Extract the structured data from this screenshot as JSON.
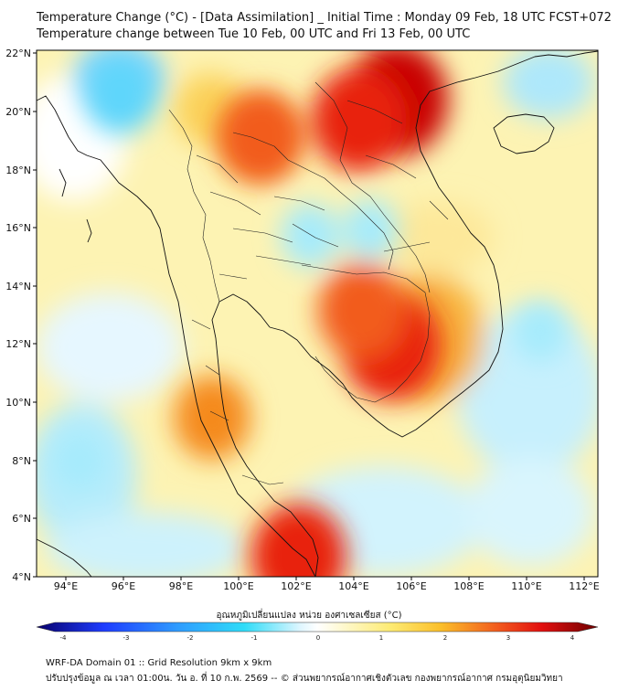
{
  "header": {
    "title": "Temperature Change (°C) - [Data Assimilation] _ Initial Time : Monday 09 Feb, 18 UTC FCST+072",
    "subtitle": "Temperature change between Tue 10 Feb, 00 UTC and Fri 13 Feb, 00 UTC"
  },
  "map": {
    "projection": "lat-lon",
    "lon_range": [
      93,
      112.5
    ],
    "lat_range": [
      4,
      22.2
    ],
    "lon_ticks": [
      "94°E",
      "96°E",
      "98°E",
      "100°E",
      "102°E",
      "104°E",
      "106°E",
      "108°E",
      "110°E",
      "112°E"
    ],
    "lat_ticks": [
      "22°N",
      "20°N",
      "18°N",
      "16°N",
      "14°N",
      "12°N",
      "10°N",
      "8°N",
      "6°N",
      "4°N"
    ],
    "background_color": "#ffffff",
    "warm_regions": [
      {
        "name": "north-vietnam-south-china",
        "lon": 105.5,
        "lat": 20.5,
        "value": 3.5
      },
      {
        "name": "north-laos",
        "lon": 104.2,
        "lat": 19.8,
        "value": 3.0
      },
      {
        "name": "cambodia-mekong",
        "lon": 105.3,
        "lat": 12.0,
        "value": 3.3
      },
      {
        "name": "tonle-sap",
        "lon": 104.3,
        "lat": 13.2,
        "value": 2.6
      },
      {
        "name": "north-thailand",
        "lon": 100.8,
        "lat": 19.2,
        "value": 2.4
      },
      {
        "name": "gulf-of-thailand-south",
        "lon": 102.1,
        "lat": 4.7,
        "value": 3.0
      },
      {
        "name": "peninsula-west-coast",
        "lon": 99.1,
        "lat": 9.5,
        "value": 2.0
      }
    ],
    "cool_regions": [
      {
        "name": "north-myanmar",
        "lon": 95.9,
        "lat": 20.7,
        "value": -1.8
      },
      {
        "name": "northeast-thailand",
        "lon": 102.5,
        "lat": 15.8,
        "value": -1.0
      },
      {
        "name": "northeast-thailand-east",
        "lon": 104.6,
        "lat": 16.0,
        "value": -0.8
      },
      {
        "name": "south-china-sea-east",
        "lon": 110.5,
        "lat": 12.5,
        "value": -0.8
      },
      {
        "name": "andaman-sea-west",
        "lon": 94.5,
        "lat": 8.0,
        "value": -0.7
      }
    ]
  },
  "colorbar": {
    "label": "อุณหภูมิเปลี่ยนแปลง หน่วย องศาเซลเซียส (°C)",
    "range": [
      -4,
      4
    ],
    "ticks": [
      "-4",
      "-3",
      "-2",
      "-1",
      "0",
      "1",
      "2",
      "3",
      "4"
    ],
    "colors": {
      "min": "#08006b",
      "cold": "#1e64ff",
      "cool": "#2fcffb",
      "neutral": "#ffffff",
      "warm": "#fde27d",
      "hot": "#f25c1e",
      "max": "#6e0000"
    }
  },
  "footer": {
    "line1": "WRF-DA Domain 01 :: Grid Resolution 9km x 9km",
    "line2": "ปรับปรุงข้อมูล ณ เวลา 01:00น. วัน อ. ที่ 10 ก.พ. 2569 -- © ส่วนพยากรณ์อากาศเชิงตัวเลข กองพยากรณ์อากาศ กรมอุตุนิยมวิทยา"
  }
}
